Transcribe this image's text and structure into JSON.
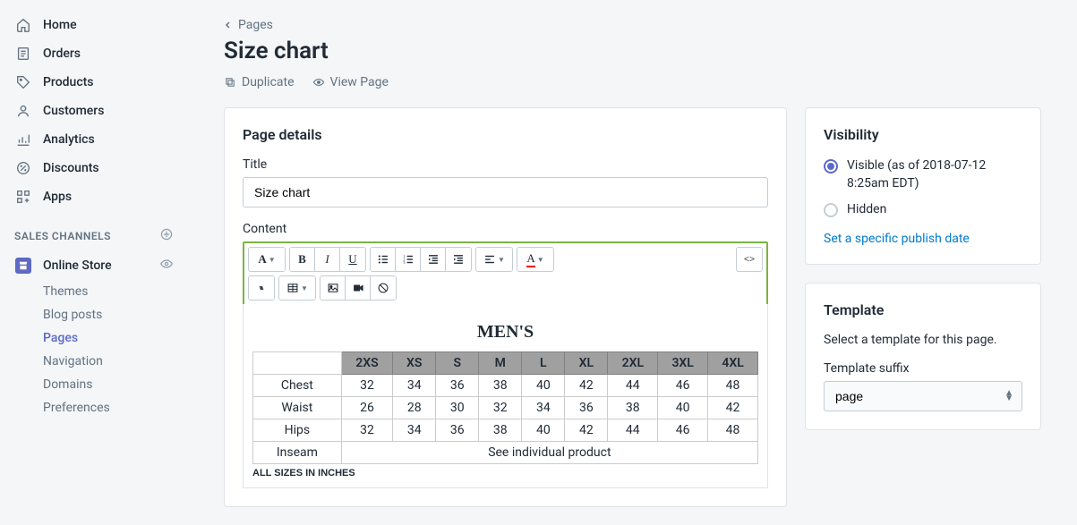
{
  "sidebar": {
    "main_nav": [
      {
        "label": "Home",
        "icon": "home"
      },
      {
        "label": "Orders",
        "icon": "orders"
      },
      {
        "label": "Products",
        "icon": "products"
      },
      {
        "label": "Customers",
        "icon": "customers"
      },
      {
        "label": "Analytics",
        "icon": "analytics"
      },
      {
        "label": "Discounts",
        "icon": "discounts"
      },
      {
        "label": "Apps",
        "icon": "apps"
      }
    ],
    "section_label": "SALES CHANNELS",
    "channel": {
      "label": "Online Store"
    },
    "sub_nav": [
      {
        "label": "Themes",
        "active": false
      },
      {
        "label": "Blog posts",
        "active": false
      },
      {
        "label": "Pages",
        "active": true
      },
      {
        "label": "Navigation",
        "active": false
      },
      {
        "label": "Domains",
        "active": false
      },
      {
        "label": "Preferences",
        "active": false
      }
    ]
  },
  "breadcrumb": {
    "back_label": "Pages"
  },
  "page_title": "Size chart",
  "actions": {
    "duplicate": "Duplicate",
    "view": "View Page"
  },
  "details": {
    "card_title": "Page details",
    "title_label": "Title",
    "title_value": "Size chart",
    "content_label": "Content"
  },
  "editor_content": {
    "heading": "MEN'S",
    "columns": [
      "",
      "2XS",
      "XS",
      "S",
      "M",
      "L",
      "XL",
      "2XL",
      "3XL",
      "4XL"
    ],
    "rows": [
      [
        "Chest",
        "32",
        "34",
        "36",
        "38",
        "40",
        "42",
        "44",
        "46",
        "48"
      ],
      [
        "Waist",
        "26",
        "28",
        "30",
        "32",
        "34",
        "36",
        "38",
        "40",
        "42"
      ],
      [
        "Hips",
        "32",
        "34",
        "36",
        "38",
        "40",
        "42",
        "44",
        "46",
        "48"
      ]
    ],
    "inseam_row": {
      "label": "Inseam",
      "text": "See individual product"
    },
    "note": "ALL SIZES IN INCHES"
  },
  "visibility": {
    "title": "Visibility",
    "visible_label": "Visible (as of 2018-07-12 8:25am EDT)",
    "hidden_label": "Hidden",
    "publish_link": "Set a specific publish date"
  },
  "template": {
    "title": "Template",
    "description": "Select a template for this page.",
    "suffix_label": "Template suffix",
    "suffix_value": "page"
  },
  "colors": {
    "highlight_border": "#7cb342",
    "accent": "#5c6ac4",
    "link": "#007ace",
    "table_header_bg": "#a0a0a0"
  }
}
